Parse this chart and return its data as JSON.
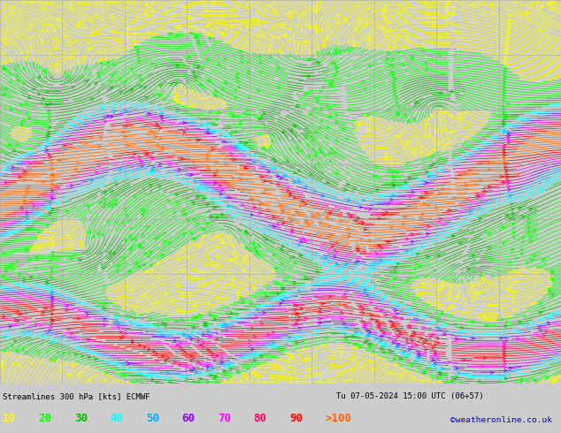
{
  "title_left": "Streamlines 300 hPa [kts] ECMWF",
  "title_right": "Tu 07-05-2024 15:00 UTC (06+57)",
  "legend_values": [
    "10",
    "20",
    "30",
    "40",
    "50",
    "60",
    "70",
    "80",
    "90",
    ">100"
  ],
  "legend_colors": [
    "#ffff00",
    "#00ff00",
    "#00bb00",
    "#00ffff",
    "#00aaff",
    "#8800ff",
    "#ff00ff",
    "#ff0066",
    "#ff0000",
    "#ff6600"
  ],
  "copyright": "©weatheronline.co.uk",
  "bg_color": "#ffffff",
  "fig_bg": "#cccccc",
  "figsize": [
    6.34,
    4.9
  ],
  "dpi": 100,
  "speed_bounds": [
    0,
    15,
    25,
    35,
    45,
    55,
    65,
    75,
    85,
    95,
    300
  ],
  "grid_color": "#aaaaaa",
  "grid_lw": 0.4
}
